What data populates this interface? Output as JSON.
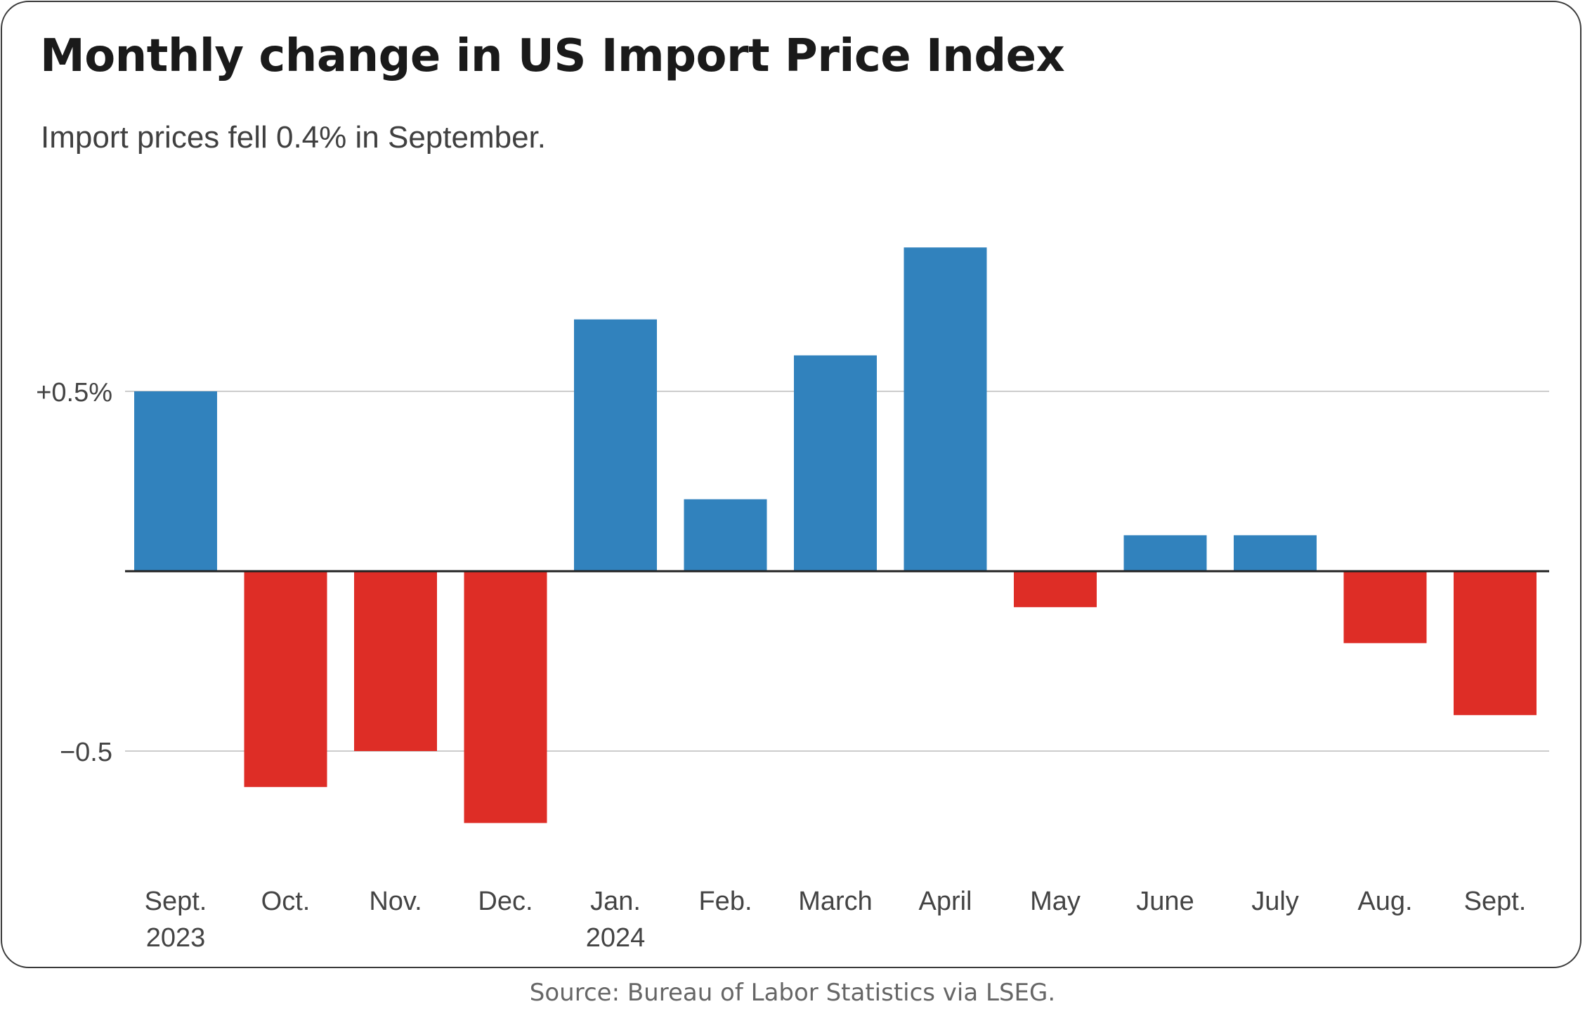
{
  "chart_data": {
    "type": "bar",
    "title": "Monthly change in US Import Price Index",
    "subtitle": "Import prices fell 0.4% in September.",
    "categories": [
      [
        "Sept.",
        "2023"
      ],
      [
        "Oct."
      ],
      [
        "Nov."
      ],
      [
        "Dec."
      ],
      [
        "Jan.",
        "2024"
      ],
      [
        "Feb."
      ],
      [
        "March"
      ],
      [
        "April"
      ],
      [
        "May"
      ],
      [
        "June"
      ],
      [
        "July"
      ],
      [
        "Aug."
      ],
      [
        "Sept."
      ]
    ],
    "values": [
      0.5,
      -0.6,
      -0.5,
      -0.7,
      0.7,
      0.2,
      0.6,
      0.9,
      -0.1,
      0.1,
      0.1,
      -0.2,
      -0.4
    ],
    "ylim": [
      -0.95,
      1.1
    ],
    "yticks": [
      {
        "value": 0.5,
        "label": "+0.5%"
      },
      {
        "value": -0.5,
        "label": "−0.5"
      }
    ],
    "colors": {
      "positive": "#3182bd",
      "negative": "#de2d26",
      "grid": "#cccccc",
      "zero_line": "#222222"
    },
    "grid": true,
    "legend": "none"
  },
  "source": "Source: Bureau of Labor Statistics via LSEG."
}
